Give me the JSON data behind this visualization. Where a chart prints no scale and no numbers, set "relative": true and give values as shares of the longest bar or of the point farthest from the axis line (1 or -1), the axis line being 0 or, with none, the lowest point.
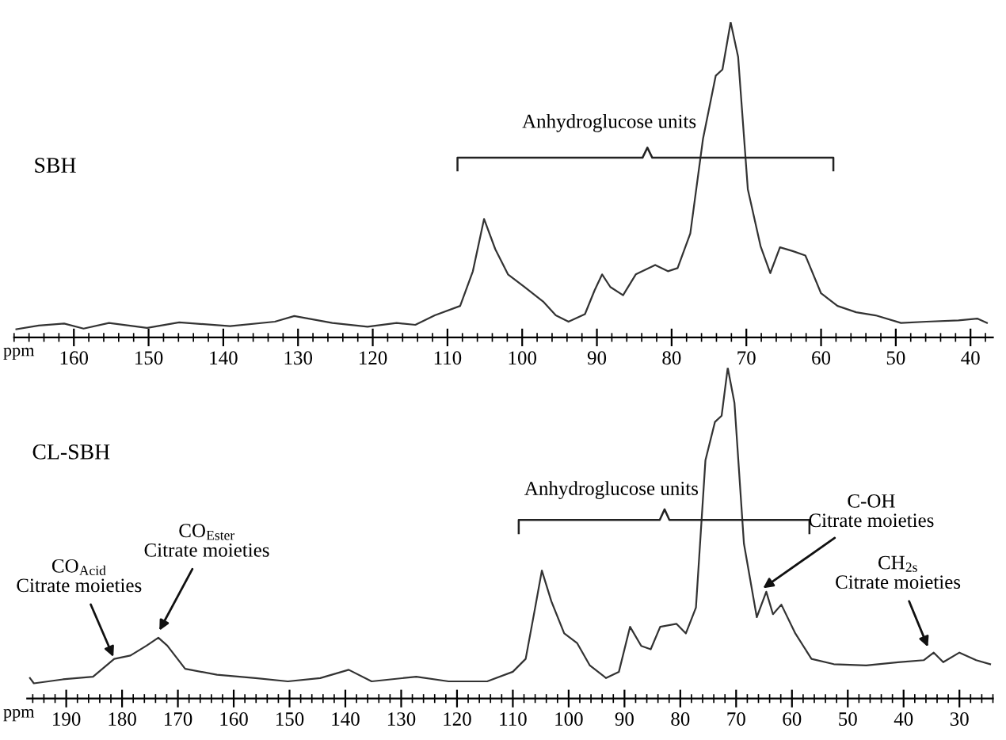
{
  "chart_data": [
    {
      "type": "line",
      "title": "SBH",
      "xlabel": "ppm",
      "relative": true,
      "xlim": [
        168,
        37
      ],
      "xticks": [
        160,
        150,
        140,
        130,
        120,
        110,
        100,
        90,
        80,
        70,
        60,
        50,
        40
      ],
      "grid": false,
      "legend": false,
      "marker": "none",
      "line_style": "solid",
      "annotations": [
        "Anhydroglucose units"
      ],
      "series": [
        {
          "color": "#333333",
          "x": [
            167.7,
            164.7,
            161.3,
            158.7,
            155.3,
            150.2,
            145.9,
            139.1,
            133.1,
            130.5,
            125.4,
            120.7,
            116.8,
            114.3,
            111.7,
            108.3,
            106.6,
            105.1,
            103.6,
            101.9,
            99.7,
            97.2,
            95.5,
            93.8,
            91.6,
            90.3,
            89.3,
            88.2,
            86.5,
            84.8,
            82.2,
            80.5,
            79.2,
            77.5,
            75.8,
            74.1,
            73.2,
            72.1,
            71.1,
            69.8,
            68.1,
            66.8,
            65.5,
            63.8,
            62.1,
            60.0,
            57.8,
            55.3,
            52.7,
            49.3,
            45.9,
            41.6,
            39.1,
            37.8
          ],
          "values": [
            0.026,
            0.038,
            0.044,
            0.028,
            0.046,
            0.03,
            0.048,
            0.036,
            0.05,
            0.068,
            0.046,
            0.034,
            0.046,
            0.04,
            0.07,
            0.1,
            0.21,
            0.376,
            0.28,
            0.2,
            0.16,
            0.114,
            0.07,
            0.05,
            0.074,
            0.15,
            0.2,
            0.16,
            0.134,
            0.2,
            0.23,
            0.21,
            0.22,
            0.33,
            0.63,
            0.83,
            0.85,
            1.0,
            0.89,
            0.47,
            0.29,
            0.204,
            0.286,
            0.274,
            0.26,
            0.14,
            0.1,
            0.08,
            0.07,
            0.046,
            0.05,
            0.054,
            0.06,
            0.046
          ]
        }
      ]
    },
    {
      "type": "line",
      "title": "CL-SBH",
      "xlabel": "ppm",
      "relative": true,
      "xlim": [
        197,
        24
      ],
      "xticks": [
        190,
        180,
        170,
        160,
        150,
        140,
        130,
        120,
        110,
        100,
        90,
        80,
        70,
        60,
        50,
        40,
        30
      ],
      "grid": false,
      "legend": false,
      "marker": "none",
      "line_style": "solid",
      "annotations": [
        "Anhydroglucose units",
        {
          "text": "CO$_{Acid}$\nCitrate moieties",
          "x": 181.4,
          "y": 0.12
        },
        {
          "text": "CO$_{Ester}$\nCitrate moieties",
          "x": 173.5,
          "y": 0.2
        },
        {
          "text": "C-OH\nCitrate moieties",
          "x": 65.5,
          "y": 0.33
        },
        {
          "text": "CH$_{2s}$\nCitrate moieties",
          "x": 35.5,
          "y": 0.15
        }
      ],
      "series": [
        {
          "color": "#333333",
          "x": [
            196.5,
            195.8,
            190.6,
            185.2,
            181.4,
            178.5,
            175.6,
            173.5,
            171.9,
            168.7,
            163.0,
            156.1,
            150.3,
            144.5,
            139.4,
            135.3,
            127.3,
            121.5,
            114.6,
            110.0,
            107.7,
            106.0,
            104.8,
            103.1,
            100.8,
            98.5,
            96.2,
            93.3,
            91.0,
            89.0,
            87.0,
            85.3,
            83.6,
            80.7,
            79.0,
            77.2,
            75.5,
            73.8,
            72.6,
            71.5,
            70.3,
            68.6,
            66.3,
            64.6,
            63.4,
            61.9,
            59.4,
            56.5,
            52.5,
            46.7,
            41.0,
            36.4,
            34.6,
            32.9,
            30.0,
            27.0,
            24.5
          ],
          "values": [
            0.062,
            0.046,
            0.058,
            0.066,
            0.12,
            0.13,
            0.16,
            0.184,
            0.16,
            0.09,
            0.072,
            0.062,
            0.052,
            0.062,
            0.087,
            0.052,
            0.066,
            0.052,
            0.052,
            0.081,
            0.12,
            0.275,
            0.387,
            0.294,
            0.197,
            0.168,
            0.1,
            0.062,
            0.081,
            0.217,
            0.159,
            0.149,
            0.217,
            0.226,
            0.197,
            0.275,
            0.72,
            0.836,
            0.855,
            1.0,
            0.894,
            0.468,
            0.246,
            0.323,
            0.255,
            0.284,
            0.197,
            0.12,
            0.104,
            0.1,
            0.11,
            0.116,
            0.139,
            0.11,
            0.139,
            0.116,
            0.104
          ]
        }
      ]
    }
  ]
}
